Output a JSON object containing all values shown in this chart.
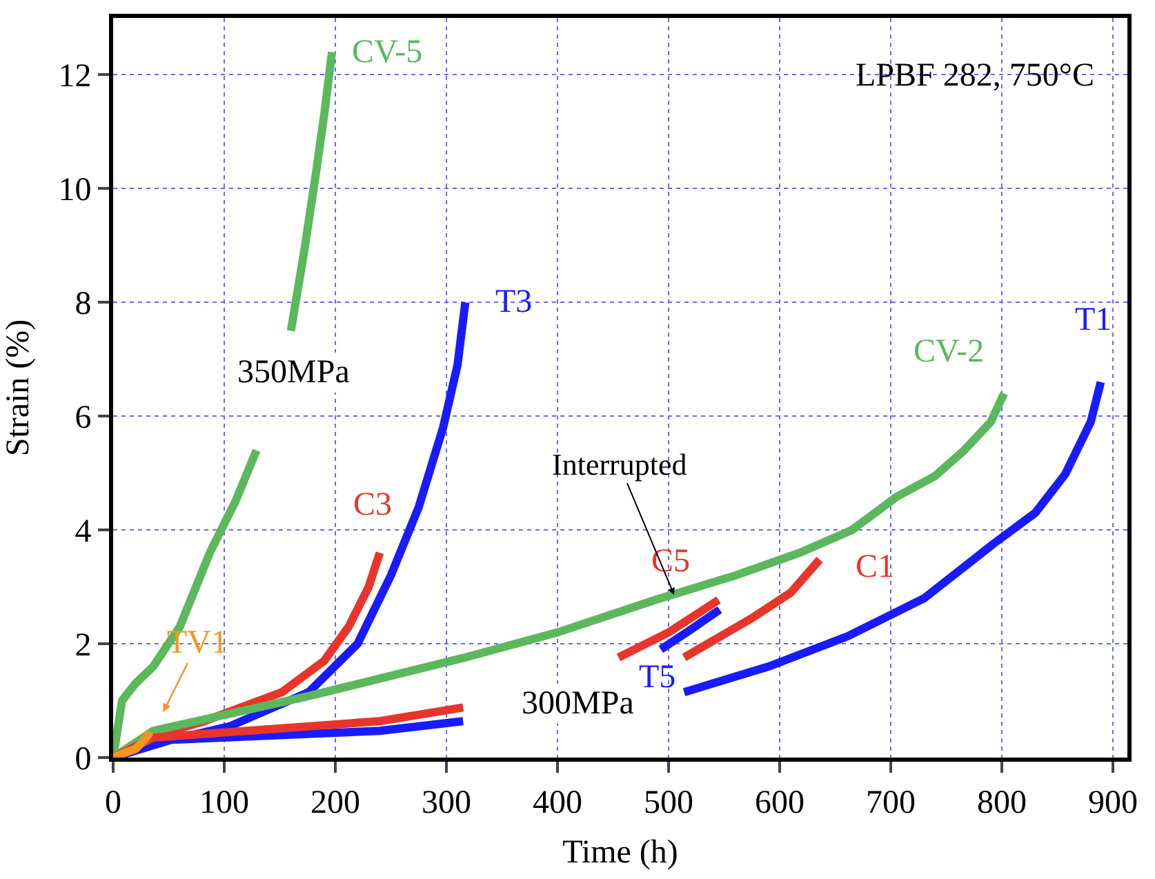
{
  "chart_data": {
    "type": "line",
    "xlabel": "Time (h)",
    "ylabel": "Strain (%)",
    "xlim": [
      0,
      913
    ],
    "ylim": [
      0,
      13
    ],
    "xticks": [
      0,
      100,
      200,
      300,
      400,
      500,
      600,
      700,
      800,
      900
    ],
    "yticks": [
      0,
      2,
      4,
      6,
      8,
      10,
      12
    ],
    "grid": true,
    "legend": false,
    "line_style": "solid",
    "marker": "none",
    "series": [
      {
        "name": "CV-5",
        "color": "#5cb85c",
        "x": [
          0,
          8,
          20,
          36,
          60,
          87,
          110,
          129,
          147,
          160,
          172,
          182,
          190,
          197
        ],
        "values": [
          0,
          1.0,
          1.3,
          1.6,
          2.3,
          3.6,
          4.5,
          5.4,
          null,
          7.5,
          8.9,
          10.2,
          11.3,
          12.4
        ]
      },
      {
        "name": "T3",
        "color": "#1a1aff",
        "x": [
          0,
          50,
          105,
          176,
          220,
          250,
          275,
          297,
          310,
          317
        ],
        "values": [
          0,
          0.3,
          0.55,
          1.15,
          2.0,
          3.2,
          4.4,
          5.8,
          6.9,
          8.0
        ]
      },
      {
        "name": "C3",
        "color": "#e8352b",
        "x": [
          0,
          40,
          82,
          152,
          190,
          212,
          230,
          240
        ],
        "values": [
          0,
          0.4,
          0.64,
          1.15,
          1.7,
          2.3,
          3.0,
          3.6
        ]
      },
      {
        "name": "TV1",
        "color": "#f5951d",
        "x": [
          0,
          10,
          20,
          28,
          33
        ],
        "values": [
          0,
          0.08,
          0.15,
          0.3,
          0.45
        ]
      },
      {
        "name": "CV-2",
        "color": "#5cb85c",
        "x": [
          0,
          36,
          176,
          315,
          400,
          488,
          560,
          618,
          665,
          705,
          740,
          766,
          790,
          802
        ],
        "values": [
          0,
          0.47,
          1.08,
          1.75,
          2.2,
          2.77,
          3.2,
          3.6,
          4.0,
          4.58,
          4.95,
          5.4,
          5.9,
          6.4
        ]
      },
      {
        "name": "T1",
        "color": "#1a1aff",
        "x": [
          0,
          36,
          240,
          315,
          330,
          514,
          590,
          661,
          730,
          792,
          830,
          857,
          880,
          889
        ],
        "values": [
          0,
          0.3,
          0.47,
          0.64,
          null,
          1.15,
          1.6,
          2.13,
          2.8,
          3.75,
          4.3,
          4.98,
          5.9,
          6.6
        ]
      },
      {
        "name": "C5",
        "color": "#e8352b",
        "x": [
          455,
          500,
          545
        ],
        "values": [
          1.76,
          2.2,
          2.77
        ]
      },
      {
        "name": "T5",
        "color": "#1a1aff",
        "x": [
          493,
          520,
          546
        ],
        "values": [
          1.9,
          2.25,
          2.6
        ]
      },
      {
        "name": "C1",
        "color": "#e8352b",
        "x": [
          0,
          36,
          240,
          315,
          330,
          514,
          575,
          610,
          636
        ],
        "values": [
          0,
          0.35,
          0.64,
          0.88,
          null,
          1.76,
          2.45,
          2.9,
          3.48
        ]
      }
    ],
    "annotations": [
      "LPBF 282, 750°C",
      "350MPa",
      "300MPa",
      {
        "text": "Interrupted",
        "x": 505,
        "y": 2.86
      }
    ]
  }
}
